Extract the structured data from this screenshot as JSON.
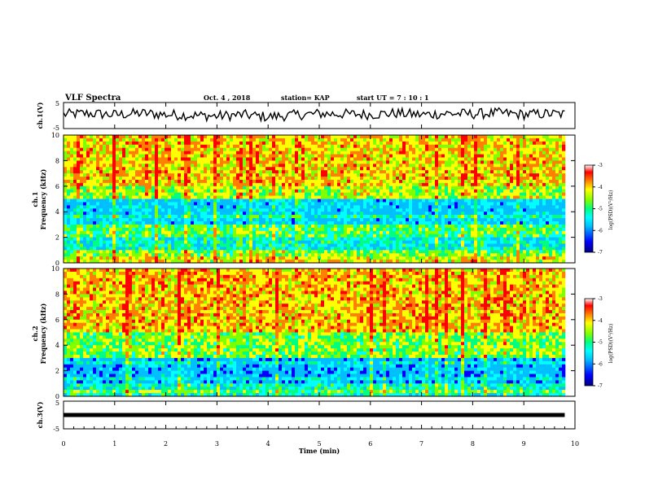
{
  "header": {
    "title": "VLF Spectra",
    "date": "Oct. 4 , 2018",
    "station": "station= KAP",
    "start_time": "start  UT =   7 : 10 : 1"
  },
  "chart_data": [
    {
      "type": "line",
      "panel": "ch1-waveform",
      "ylabel": "ch.1(V)",
      "ylim": [
        -5,
        5
      ],
      "yticks": [
        "5",
        "-5"
      ],
      "x": [
        0,
        0.5,
        1,
        1.5,
        2,
        2.5,
        3,
        3.5,
        4,
        4.5,
        5,
        5.5,
        6,
        6.5,
        7,
        7.5,
        8,
        8.5,
        9,
        9.5,
        9.8
      ],
      "y": [
        0.5,
        0.8,
        0.3,
        0.9,
        0.4,
        0.1,
        -0.2,
        0.3,
        -0.5,
        0.2,
        0.7,
        0.6,
        0.4,
        0.9,
        0.3,
        0.8,
        0.6,
        1.0,
        0.4,
        0.7,
        0.5
      ],
      "color": "#000000"
    },
    {
      "type": "heatmap",
      "panel": "ch1-spectrogram",
      "ylabel": "ch.1\nFrequency (kHz)",
      "ylim": [
        0,
        10
      ],
      "yticks": [
        "10",
        "8",
        "6",
        "4",
        "2",
        "0"
      ],
      "xlim": [
        0,
        10
      ],
      "colorbar": {
        "label": "log(PSD)(V²/Hz)",
        "range": [
          -7,
          -3
        ],
        "ticks": [
          "-3",
          "-4",
          "-5",
          "-6",
          "-7"
        ]
      },
      "approx_log_psd_by_band": [
        {
          "freq_khz": [
            0,
            1
          ],
          "value": -5.0
        },
        {
          "freq_khz": [
            1,
            2
          ],
          "value": -5.7
        },
        {
          "freq_khz": [
            2,
            3
          ],
          "value": -5.2
        },
        {
          "freq_khz": [
            3,
            5
          ],
          "value": -6.1
        },
        {
          "freq_khz": [
            5,
            6
          ],
          "value": -4.8
        },
        {
          "freq_khz": [
            6,
            10
          ],
          "value": -4.4
        }
      ]
    },
    {
      "type": "heatmap",
      "panel": "ch2-spectrogram",
      "ylabel": "ch.2\nFrequency (kHz)",
      "ylim": [
        0,
        10
      ],
      "yticks": [
        "10",
        "8",
        "6",
        "4",
        "2",
        "0"
      ],
      "xlim": [
        0,
        10
      ],
      "colorbar": {
        "label": "log(PSD)(V²/Hz)",
        "range": [
          -7,
          -3
        ],
        "ticks": [
          "-3",
          "-4",
          "-5",
          "-6",
          "-7"
        ]
      },
      "approx_log_psd_by_band": [
        {
          "freq_khz": [
            0,
            1
          ],
          "value": -5.6
        },
        {
          "freq_khz": [
            1,
            3
          ],
          "value": -6.3
        },
        {
          "freq_khz": [
            3,
            5
          ],
          "value": -5.0
        },
        {
          "freq_khz": [
            5,
            10
          ],
          "value": -4.3
        }
      ]
    },
    {
      "type": "line",
      "panel": "ch3-waveform",
      "ylabel": "ch.3(V)",
      "ylim": [
        -5,
        5
      ],
      "yticks": [
        "5",
        "-5"
      ],
      "x": [
        0,
        9.8
      ],
      "y": [
        0,
        0
      ],
      "color": "#000000"
    }
  ],
  "x_axis": {
    "label": "Time  (min)",
    "range": [
      0,
      10
    ],
    "ticks": [
      "0",
      "1",
      "2",
      "3",
      "4",
      "5",
      "6",
      "7",
      "8",
      "9",
      "10"
    ]
  },
  "colors": {
    "jet": [
      "#000080",
      "#0000ff",
      "#00bfff",
      "#00ffff",
      "#00ff80",
      "#80ff00",
      "#ffff00",
      "#ff8000",
      "#ff0000",
      "#ffffff"
    ]
  }
}
